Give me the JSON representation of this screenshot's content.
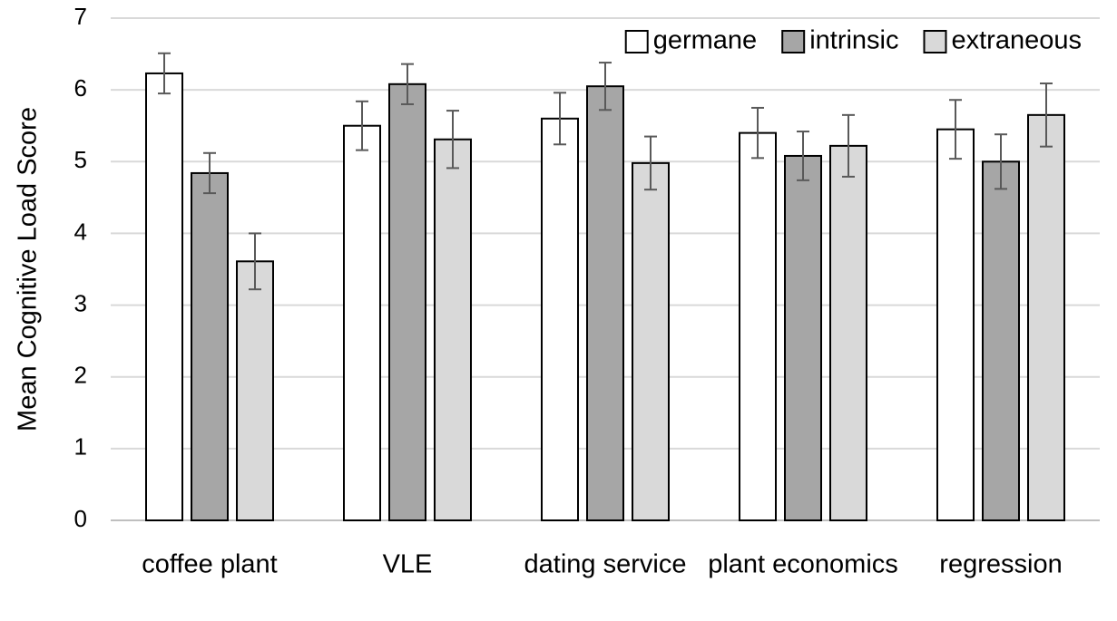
{
  "chart_data": {
    "type": "bar",
    "y_label": "Mean Cognitive Load Score",
    "categories": [
      "coffee plant",
      "VLE",
      "dating service",
      "plant economics",
      "regression"
    ],
    "series": [
      {
        "name": "germane",
        "color": "#ffffff",
        "values": [
          6.23,
          5.5,
          5.6,
          5.4,
          5.45
        ],
        "errors": [
          0.28,
          0.34,
          0.36,
          0.35,
          0.41
        ]
      },
      {
        "name": "intrinsic",
        "color": "#a6a6a6",
        "values": [
          4.84,
          6.08,
          6.05,
          5.08,
          5.0
        ],
        "errors": [
          0.28,
          0.28,
          0.33,
          0.34,
          0.38
        ]
      },
      {
        "name": "extraneous",
        "color": "#d9d9d9",
        "values": [
          3.61,
          5.31,
          4.98,
          5.22,
          5.65
        ],
        "errors": [
          0.39,
          0.4,
          0.37,
          0.43,
          0.44
        ]
      }
    ],
    "ylim": [
      0,
      7
    ],
    "yticks": [
      0,
      1,
      2,
      3,
      4,
      5,
      6,
      7
    ],
    "grid": true,
    "legend": "top-right"
  }
}
